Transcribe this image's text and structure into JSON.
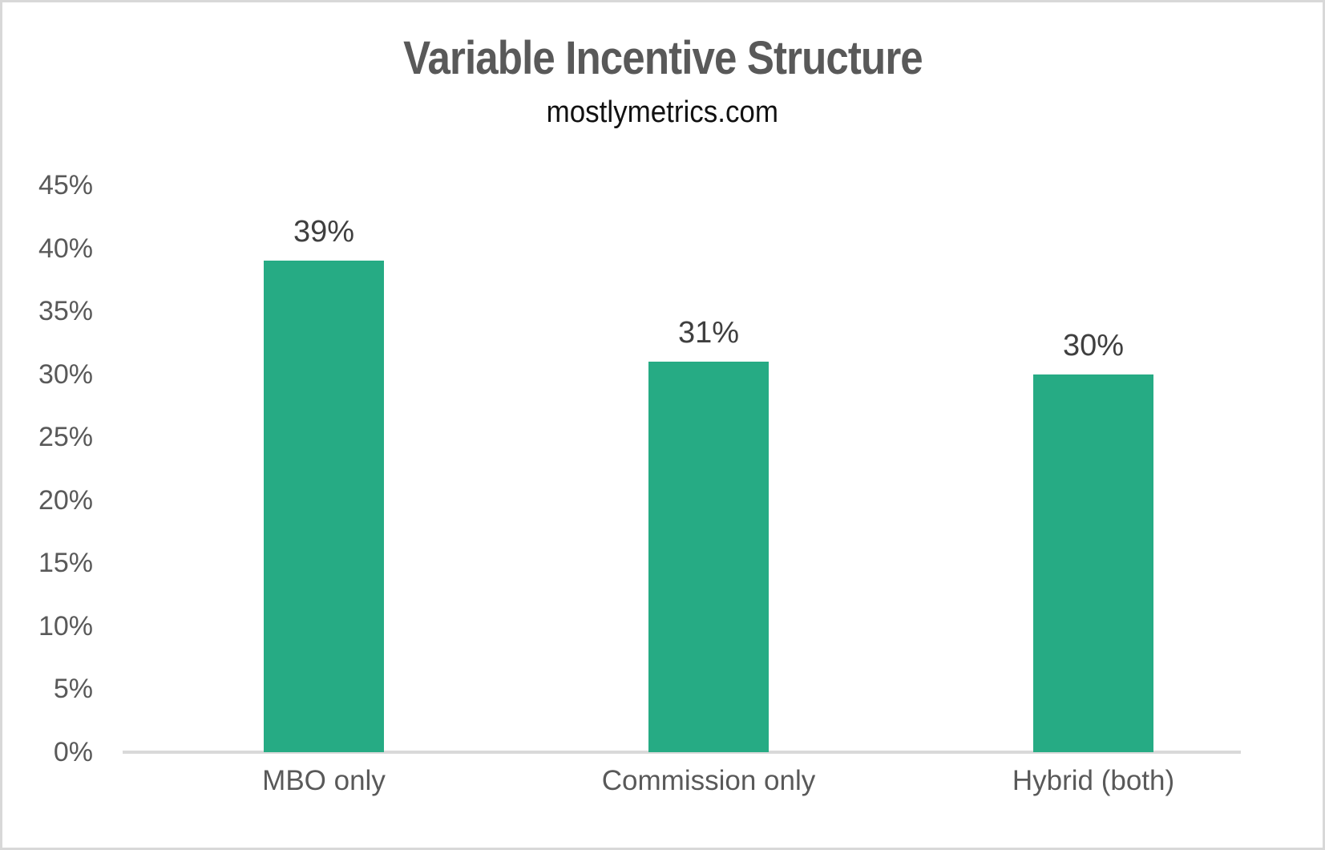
{
  "page": {
    "background_color": "#ffffff",
    "border_color": "#d8d8d8"
  },
  "chart_data": {
    "type": "bar",
    "title": "Variable Incentive Structure",
    "subtitle": "mostlymetrics.com",
    "categories": [
      "MBO only",
      "Commission only",
      "Hybrid (both)"
    ],
    "values": [
      39,
      31,
      30
    ],
    "data_labels": [
      "39%",
      "31%",
      "30%"
    ],
    "y_ticks": [
      "45%",
      "40%",
      "35%",
      "30%",
      "25%",
      "20%",
      "15%",
      "10%",
      "5%",
      "0%"
    ],
    "y_tick_values": [
      45,
      40,
      35,
      30,
      25,
      20,
      15,
      10,
      5,
      0
    ],
    "ylim": [
      0,
      45
    ],
    "xlabel": "",
    "ylabel": "",
    "grid": false,
    "legend": false,
    "bar_color": "#26ab84",
    "axis_line_color": "#d9d9d9",
    "title_color": "#595959",
    "subtitle_color": "#111111",
    "value_label_color": "#3f3f3f",
    "tick_label_color": "#595959"
  }
}
